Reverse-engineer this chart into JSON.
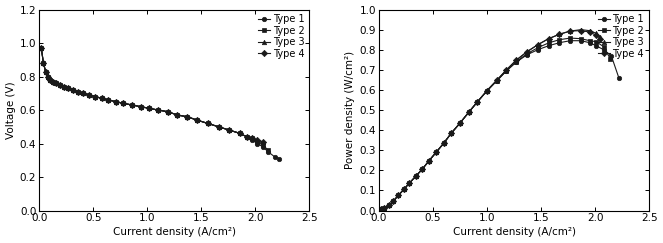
{
  "left_plot": {
    "xlabel": "Current density (A/cm²)",
    "ylabel": "Voltage (V)",
    "xlim": [
      0,
      2.5
    ],
    "ylim": [
      0.0,
      1.2
    ],
    "xticks": [
      0.0,
      0.5,
      1.0,
      1.5,
      2.0,
      2.5
    ],
    "yticks": [
      0.0,
      0.2,
      0.4,
      0.6,
      0.8,
      1.0,
      1.2
    ],
    "series": [
      {
        "label": "Type 1",
        "marker": "o",
        "x": [
          0.02,
          0.04,
          0.06,
          0.08,
          0.1,
          0.13,
          0.16,
          0.19,
          0.23,
          0.27,
          0.31,
          0.36,
          0.41,
          0.46,
          0.52,
          0.58,
          0.64,
          0.71,
          0.78,
          0.86,
          0.94,
          1.02,
          1.1,
          1.19,
          1.28,
          1.37,
          1.46,
          1.56,
          1.66,
          1.76,
          1.86,
          1.92,
          1.97,
          2.02,
          2.07,
          2.12,
          2.18,
          2.22
        ],
        "y": [
          0.97,
          0.88,
          0.83,
          0.8,
          0.78,
          0.77,
          0.76,
          0.75,
          0.74,
          0.73,
          0.72,
          0.71,
          0.7,
          0.69,
          0.68,
          0.67,
          0.66,
          0.65,
          0.64,
          0.63,
          0.62,
          0.61,
          0.6,
          0.59,
          0.57,
          0.56,
          0.54,
          0.52,
          0.5,
          0.48,
          0.46,
          0.44,
          0.42,
          0.4,
          0.38,
          0.35,
          0.32,
          0.31
        ]
      },
      {
        "label": "Type 2",
        "marker": "s",
        "x": [
          0.02,
          0.04,
          0.06,
          0.08,
          0.1,
          0.13,
          0.16,
          0.19,
          0.23,
          0.27,
          0.31,
          0.36,
          0.41,
          0.46,
          0.52,
          0.58,
          0.64,
          0.71,
          0.78,
          0.86,
          0.94,
          1.02,
          1.1,
          1.19,
          1.28,
          1.37,
          1.46,
          1.56,
          1.66,
          1.76,
          1.86,
          1.92,
          1.97,
          2.02,
          2.07,
          2.12
        ],
        "y": [
          0.97,
          0.88,
          0.83,
          0.8,
          0.78,
          0.77,
          0.76,
          0.75,
          0.74,
          0.73,
          0.72,
          0.71,
          0.7,
          0.69,
          0.68,
          0.67,
          0.66,
          0.65,
          0.64,
          0.63,
          0.62,
          0.61,
          0.6,
          0.59,
          0.57,
          0.56,
          0.54,
          0.52,
          0.5,
          0.48,
          0.46,
          0.44,
          0.43,
          0.41,
          0.39,
          0.36
        ]
      },
      {
        "label": "Type 3",
        "marker": "^",
        "x": [
          0.02,
          0.04,
          0.06,
          0.08,
          0.1,
          0.13,
          0.16,
          0.19,
          0.23,
          0.27,
          0.31,
          0.36,
          0.41,
          0.46,
          0.52,
          0.58,
          0.64,
          0.71,
          0.78,
          0.86,
          0.94,
          1.02,
          1.1,
          1.19,
          1.28,
          1.37,
          1.46,
          1.56,
          1.66,
          1.76,
          1.86,
          1.92,
          1.97,
          2.02,
          2.07
        ],
        "y": [
          0.97,
          0.88,
          0.83,
          0.8,
          0.78,
          0.77,
          0.76,
          0.75,
          0.74,
          0.73,
          0.72,
          0.71,
          0.7,
          0.69,
          0.68,
          0.67,
          0.66,
          0.65,
          0.64,
          0.63,
          0.62,
          0.61,
          0.6,
          0.59,
          0.57,
          0.56,
          0.54,
          0.52,
          0.5,
          0.48,
          0.46,
          0.44,
          0.43,
          0.42,
          0.41
        ]
      },
      {
        "label": "Type 4",
        "marker": "D",
        "x": [
          0.02,
          0.04,
          0.06,
          0.08,
          0.1,
          0.13,
          0.16,
          0.19,
          0.23,
          0.27,
          0.31,
          0.36,
          0.41,
          0.46,
          0.52,
          0.58,
          0.64,
          0.71,
          0.78,
          0.86,
          0.94,
          1.02,
          1.1,
          1.19,
          1.28,
          1.37,
          1.46,
          1.56,
          1.66,
          1.76,
          1.86,
          1.92,
          1.97,
          2.02,
          2.07
        ],
        "y": [
          0.97,
          0.88,
          0.83,
          0.8,
          0.78,
          0.77,
          0.76,
          0.75,
          0.74,
          0.73,
          0.72,
          0.71,
          0.7,
          0.69,
          0.68,
          0.67,
          0.66,
          0.65,
          0.64,
          0.63,
          0.62,
          0.61,
          0.6,
          0.59,
          0.57,
          0.56,
          0.54,
          0.52,
          0.5,
          0.48,
          0.46,
          0.44,
          0.43,
          0.42,
          0.41
        ]
      }
    ]
  },
  "right_plot": {
    "xlabel": "Current density (A/cm²)",
    "ylabel": "Power density (W/cm²)",
    "xlim": [
      0,
      2.5
    ],
    "ylim": [
      0.0,
      1.0
    ],
    "xticks": [
      0.0,
      0.5,
      1.0,
      1.5,
      2.0,
      2.5
    ],
    "yticks": [
      0.0,
      0.1,
      0.2,
      0.3,
      0.4,
      0.5,
      0.6,
      0.7,
      0.8,
      0.9,
      1.0
    ],
    "series": [
      {
        "label": "Type 1",
        "marker": "o",
        "x": [
          0.02,
          0.05,
          0.09,
          0.13,
          0.18,
          0.23,
          0.28,
          0.34,
          0.4,
          0.46,
          0.53,
          0.6,
          0.67,
          0.75,
          0.83,
          0.91,
          1.0,
          1.09,
          1.18,
          1.27,
          1.37,
          1.47,
          1.57,
          1.67,
          1.77,
          1.87,
          1.95,
          2.01,
          2.08,
          2.15,
          2.22
        ],
        "y": [
          0.005,
          0.012,
          0.025,
          0.045,
          0.075,
          0.105,
          0.135,
          0.17,
          0.205,
          0.245,
          0.29,
          0.335,
          0.385,
          0.435,
          0.488,
          0.54,
          0.595,
          0.645,
          0.695,
          0.738,
          0.775,
          0.8,
          0.82,
          0.835,
          0.845,
          0.845,
          0.835,
          0.82,
          0.8,
          0.77,
          0.66
        ]
      },
      {
        "label": "Type 2",
        "marker": "s",
        "x": [
          0.02,
          0.05,
          0.09,
          0.13,
          0.18,
          0.23,
          0.28,
          0.34,
          0.4,
          0.46,
          0.53,
          0.6,
          0.67,
          0.75,
          0.83,
          0.91,
          1.0,
          1.09,
          1.18,
          1.27,
          1.37,
          1.47,
          1.57,
          1.67,
          1.77,
          1.87,
          1.95,
          2.01,
          2.08,
          2.14
        ],
        "y": [
          0.005,
          0.012,
          0.025,
          0.045,
          0.075,
          0.105,
          0.135,
          0.17,
          0.205,
          0.245,
          0.29,
          0.335,
          0.385,
          0.435,
          0.488,
          0.54,
          0.595,
          0.645,
          0.695,
          0.74,
          0.78,
          0.81,
          0.834,
          0.85,
          0.858,
          0.855,
          0.845,
          0.84,
          0.815,
          0.755
        ]
      },
      {
        "label": "Type 3",
        "marker": "^",
        "x": [
          0.02,
          0.05,
          0.09,
          0.13,
          0.18,
          0.23,
          0.28,
          0.34,
          0.4,
          0.46,
          0.53,
          0.6,
          0.67,
          0.75,
          0.83,
          0.91,
          1.0,
          1.09,
          1.18,
          1.27,
          1.37,
          1.47,
          1.57,
          1.67,
          1.77,
          1.87,
          1.95,
          2.01,
          2.05
        ],
        "y": [
          0.005,
          0.012,
          0.025,
          0.045,
          0.075,
          0.105,
          0.135,
          0.17,
          0.205,
          0.245,
          0.29,
          0.335,
          0.385,
          0.435,
          0.488,
          0.54,
          0.597,
          0.648,
          0.7,
          0.748,
          0.79,
          0.825,
          0.855,
          0.877,
          0.893,
          0.9,
          0.895,
          0.882,
          0.862
        ]
      },
      {
        "label": "Type 4",
        "marker": "D",
        "x": [
          0.02,
          0.05,
          0.09,
          0.13,
          0.18,
          0.23,
          0.28,
          0.34,
          0.4,
          0.46,
          0.53,
          0.6,
          0.67,
          0.75,
          0.83,
          0.91,
          1.0,
          1.09,
          1.18,
          1.27,
          1.37,
          1.47,
          1.57,
          1.67,
          1.77,
          1.87,
          1.95,
          2.01,
          2.05
        ],
        "y": [
          0.005,
          0.012,
          0.025,
          0.045,
          0.075,
          0.105,
          0.135,
          0.17,
          0.205,
          0.245,
          0.29,
          0.335,
          0.385,
          0.435,
          0.488,
          0.54,
          0.597,
          0.648,
          0.7,
          0.748,
          0.79,
          0.825,
          0.855,
          0.877,
          0.893,
          0.895,
          0.888,
          0.872,
          0.855
        ]
      }
    ]
  },
  "line_color": "#1a1a1a",
  "marker_size": 3.2,
  "linewidth": 0.8,
  "font_size": 7.5,
  "legend_font_size": 7.0,
  "tick_labelsize": 7.5
}
